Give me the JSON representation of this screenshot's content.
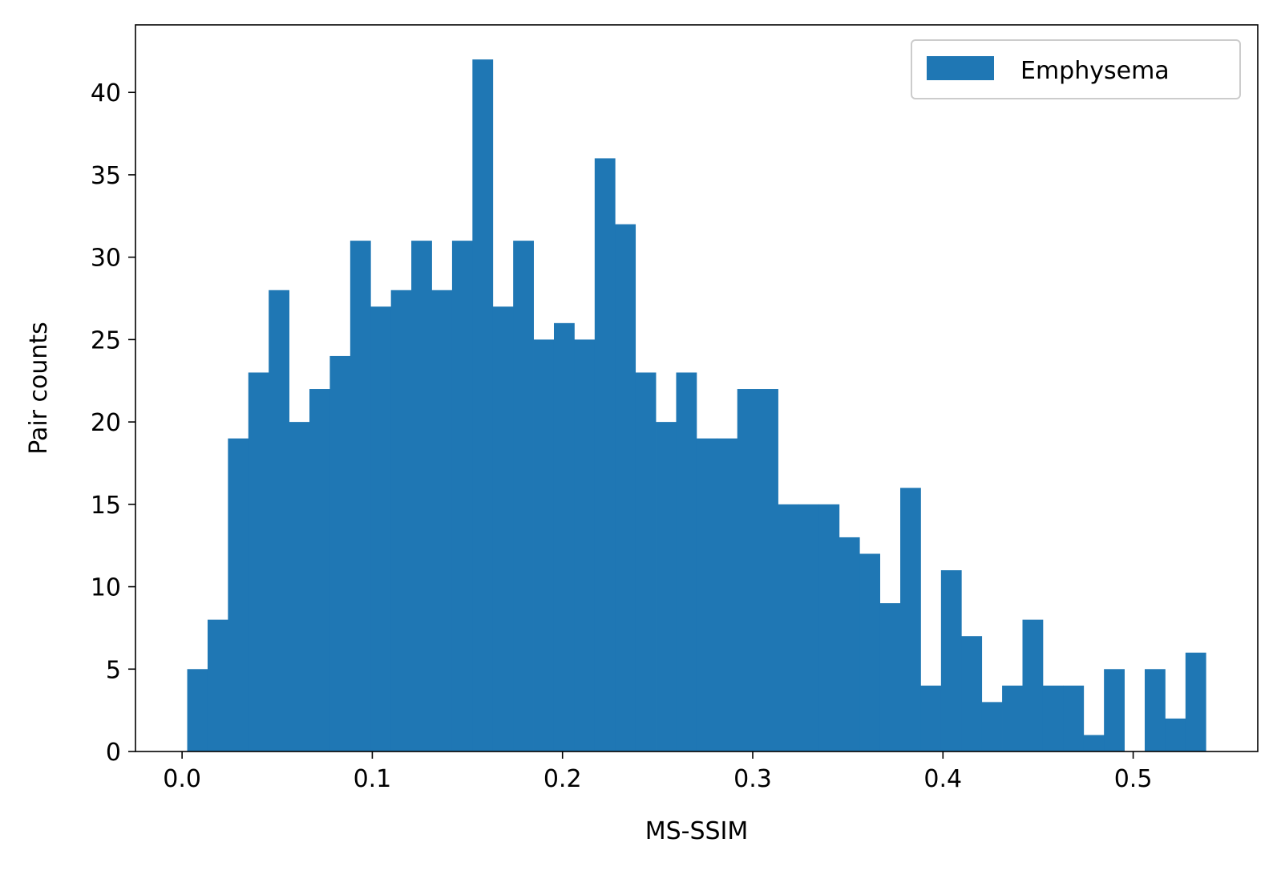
{
  "chart_data": {
    "type": "bar",
    "subtype": "histogram",
    "title": "",
    "xlabel": "MS-SSIM",
    "ylabel": "Pair counts",
    "xlim": [
      -0.0245,
      0.5655
    ],
    "ylim": [
      0,
      44.1
    ],
    "x_ticks": [
      0.0,
      0.1,
      0.2,
      0.3,
      0.4,
      0.5
    ],
    "x_tick_labels": [
      "0.0",
      "0.1",
      "0.2",
      "0.3",
      "0.4",
      "0.5"
    ],
    "y_ticks": [
      0,
      5,
      10,
      15,
      20,
      25,
      30,
      35,
      40
    ],
    "y_tick_labels": [
      "0",
      "5",
      "10",
      "15",
      "20",
      "25",
      "30",
      "35",
      "40"
    ],
    "bin_start": 0.0027,
    "bin_width": 0.01071,
    "series": [
      {
        "name": "Emphysema",
        "color": "#1f77b4",
        "values": [
          5,
          8,
          19,
          23,
          28,
          20,
          22,
          24,
          31,
          27,
          28,
          31,
          28,
          31,
          42,
          27,
          31,
          25,
          26,
          25,
          36,
          32,
          23,
          20,
          23,
          19,
          19,
          22,
          22,
          15,
          15,
          15,
          13,
          12,
          9,
          16,
          4,
          11,
          7,
          3,
          4,
          8,
          4,
          4,
          1,
          5,
          0,
          5,
          2,
          6
        ]
      }
    ],
    "legend": {
      "position": "top-right",
      "entries": [
        "Emphysema"
      ]
    },
    "grid": false
  }
}
